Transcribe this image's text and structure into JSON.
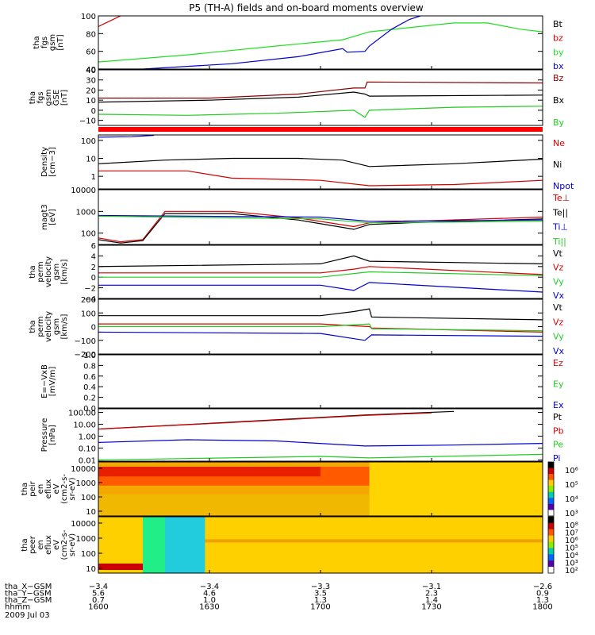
{
  "title": "P5 (TH-A) fields and on-board moments overview",
  "colors": {
    "black": "#000000",
    "red": "#d40000",
    "green": "#22dd22",
    "blue": "#0000cc",
    "brown": "#8a0000",
    "lightgreen": "#22cc22",
    "spec_bg": "#f6a800",
    "spec_hot": "#e83000"
  },
  "chart_data": [
    {
      "type": "line",
      "id": "fgs_gsm",
      "ylabel": [
        "tha",
        "fgs",
        "gsm",
        "[nT]"
      ],
      "ylim": [
        40,
        100
      ],
      "yticks": [
        "100",
        "80",
        "60",
        "40"
      ],
      "legend": [
        {
          "name": "Bt",
          "color": "#000000"
        },
        {
          "name": "bz",
          "color": "#d40000"
        },
        {
          "name": "by",
          "color": "#22dd22"
        },
        {
          "name": "bx",
          "color": "#0000cc"
        }
      ],
      "series": [
        {
          "name": "bz",
          "color": "#d40000",
          "points": [
            [
              1600,
              88
            ],
            [
              1605,
              94
            ],
            [
              1610,
              100
            ]
          ]
        },
        {
          "name": "by",
          "color": "#22dd22",
          "points": [
            [
              1600,
              48
            ],
            [
              1640,
              56
            ],
            [
              1680,
              66
            ],
            [
              1710,
              73
            ],
            [
              1722,
              82
            ],
            [
              1760,
              92
            ],
            [
              1775,
              92
            ],
            [
              1790,
              85
            ],
            [
              1800,
              82
            ]
          ]
        },
        {
          "name": "bx",
          "color": "#0000cc",
          "points": [
            [
              1600,
              40
            ],
            [
              1620,
              40
            ],
            [
              1660,
              46
            ],
            [
              1690,
              54
            ],
            [
              1710,
              63
            ],
            [
              1712,
              59
            ],
            [
              1720,
              60
            ],
            [
              1722,
              66
            ],
            [
              1732,
              85
            ],
            [
              1740,
              96
            ],
            [
              1745,
              100
            ]
          ]
        }
      ]
    },
    {
      "type": "line",
      "id": "fgs_gse",
      "ylabel": [
        "tha",
        "fgs",
        "gsm",
        "GSE",
        "[nT]"
      ],
      "ylim": [
        -15,
        40
      ],
      "yticks": [
        "40",
        "30",
        "20",
        "10",
        "0",
        "−10"
      ],
      "legend": [
        {
          "name": "Bz",
          "color": "#8a0000"
        },
        {
          "name": "Bx",
          "color": "#000000"
        },
        {
          "name": "By",
          "color": "#22cc22"
        }
      ],
      "series": [
        {
          "name": "Bz",
          "color": "#8a0000",
          "points": [
            [
              1600,
              12
            ],
            [
              1650,
              12
            ],
            [
              1690,
              16
            ],
            [
              1715,
              22
            ],
            [
              1720,
              22
            ],
            [
              1721,
              28
            ],
            [
              1800,
              27
            ]
          ]
        },
        {
          "name": "Bx",
          "color": "#000000",
          "points": [
            [
              1600,
              8
            ],
            [
              1650,
              10
            ],
            [
              1690,
              13
            ],
            [
              1715,
              18
            ],
            [
              1720,
              16
            ],
            [
              1722,
              14
            ],
            [
              1800,
              15
            ]
          ]
        },
        {
          "name": "By",
          "color": "#22cc22",
          "points": [
            [
              1600,
              -4
            ],
            [
              1640,
              -5
            ],
            [
              1680,
              -3
            ],
            [
              1715,
              0
            ],
            [
              1720,
              -7
            ],
            [
              1722,
              0
            ],
            [
              1760,
              3
            ],
            [
              1800,
              4
            ]
          ]
        }
      ]
    },
    {
      "type": "line",
      "id": "density",
      "log": true,
      "ylabel": [
        "Density",
        "[cm−3]"
      ],
      "ylim": [
        0.2,
        200
      ],
      "yticks": [
        "100",
        "10",
        "1"
      ],
      "legend": [
        {
          "name": "Ne",
          "color": "#d40000"
        },
        {
          "name": "Ni",
          "color": "#000000"
        },
        {
          "name": "Npot",
          "color": "#0000cc"
        }
      ],
      "series": [
        {
          "name": "Ni",
          "color": "#000000",
          "points": [
            [
              1600,
              5
            ],
            [
              1630,
              8
            ],
            [
              1660,
              10
            ],
            [
              1690,
              10
            ],
            [
              1710,
              8
            ],
            [
              1722,
              3.5
            ],
            [
              1760,
              5
            ],
            [
              1800,
              9
            ]
          ]
        },
        {
          "name": "Ne",
          "color": "#d40000",
          "points": [
            [
              1600,
              2
            ],
            [
              1640,
              2
            ],
            [
              1660,
              0.8
            ],
            [
              1700,
              0.6
            ],
            [
              1722,
              0.3
            ],
            [
              1760,
              0.35
            ],
            [
              1800,
              0.6
            ]
          ]
        },
        {
          "name": "Npot",
          "color": "#0000cc",
          "points": [
            [
              1600,
              150
            ],
            [
              1615,
              160
            ],
            [
              1625,
              190
            ]
          ]
        }
      ]
    },
    {
      "type": "line",
      "id": "temperature",
      "log": true,
      "ylabel": [
        "magt3",
        "[eV]"
      ],
      "ylim": [
        30,
        10000
      ],
      "yticks": [
        "10000",
        "1000",
        "100"
      ],
      "legend": [
        {
          "name": "Te⊥",
          "color": "#d40000"
        },
        {
          "name": "Te||",
          "color": "#000000"
        },
        {
          "name": "Ti⊥",
          "color": "#0000cc"
        },
        {
          "name": "Ti||",
          "color": "#22cc22"
        }
      ],
      "series": [
        {
          "name": "Te⊥",
          "color": "#d40000",
          "points": [
            [
              1600,
              60
            ],
            [
              1610,
              40
            ],
            [
              1620,
              50
            ],
            [
              1630,
              1000
            ],
            [
              1660,
              1000
            ],
            [
              1690,
              500
            ],
            [
              1715,
              200
            ],
            [
              1722,
              300
            ],
            [
              1740,
              350
            ],
            [
              1800,
              550
            ]
          ]
        },
        {
          "name": "Te||",
          "color": "#000000",
          "points": [
            [
              1600,
              50
            ],
            [
              1610,
              35
            ],
            [
              1620,
              45
            ],
            [
              1630,
              800
            ],
            [
              1660,
              800
            ],
            [
              1690,
              400
            ],
            [
              1715,
              150
            ],
            [
              1722,
              250
            ],
            [
              1740,
              300
            ],
            [
              1800,
              450
            ]
          ]
        },
        {
          "name": "Ti⊥",
          "color": "#0000cc",
          "points": [
            [
              1600,
              650
            ],
            [
              1700,
              550
            ],
            [
              1722,
              350
            ],
            [
              1800,
              400
            ]
          ]
        },
        {
          "name": "Ti||",
          "color": "#22cc22",
          "points": [
            [
              1600,
              600
            ],
            [
              1700,
              450
            ],
            [
              1722,
              300
            ],
            [
              1800,
              350
            ]
          ]
        }
      ]
    },
    {
      "type": "line",
      "id": "perm_velocity_small",
      "ylabel": [
        "tha",
        "perm",
        "velocity",
        "gsm",
        "[km/s]"
      ],
      "ylim": [
        -4,
        6
      ],
      "yticks": [
        "6",
        "4",
        "2",
        "0",
        "−2",
        "−4"
      ],
      "legend": [
        {
          "name": "Vt",
          "color": "#000000"
        },
        {
          "name": "Vz",
          "color": "#d40000"
        },
        {
          "name": "Vy",
          "color": "#22cc22"
        },
        {
          "name": "Vx",
          "color": "#0000cc"
        }
      ],
      "series": [
        {
          "name": "Vt",
          "color": "#000000",
          "points": [
            [
              1600,
              2
            ],
            [
              1700,
              2.5
            ],
            [
              1715,
              4
            ],
            [
              1722,
              3
            ],
            [
              1800,
              2.5
            ]
          ]
        },
        {
          "name": "Vz",
          "color": "#d40000",
          "points": [
            [
              1600,
              0.8
            ],
            [
              1700,
              0.8
            ],
            [
              1715,
              1.5
            ],
            [
              1722,
              2
            ],
            [
              1800,
              0.5
            ]
          ]
        },
        {
          "name": "Vy",
          "color": "#22cc22",
          "points": [
            [
              1600,
              0
            ],
            [
              1700,
              0
            ],
            [
              1722,
              1
            ],
            [
              1800,
              0.3
            ]
          ]
        },
        {
          "name": "Vx",
          "color": "#0000cc",
          "points": [
            [
              1600,
              -1.5
            ],
            [
              1700,
              -1.5
            ],
            [
              1715,
              -2.5
            ],
            [
              1722,
              -1
            ],
            [
              1800,
              -2.8
            ]
          ]
        }
      ]
    },
    {
      "type": "line",
      "id": "perm_velocity_large",
      "ylabel": [
        "tha",
        "perm",
        "velocity",
        "gsm",
        "[km/s]"
      ],
      "ylim": [
        -200,
        200
      ],
      "yticks": [
        "200",
        "100",
        "0",
        "−100",
        "−200"
      ],
      "legend": [
        {
          "name": "Vt",
          "color": "#000000"
        },
        {
          "name": "Vz",
          "color": "#d40000"
        },
        {
          "name": "Vy",
          "color": "#22cc22"
        },
        {
          "name": "Vx",
          "color": "#0000cc"
        }
      ],
      "series": [
        {
          "name": "Vt",
          "color": "#000000",
          "points": [
            [
              1600,
              80
            ],
            [
              1700,
              80
            ],
            [
              1715,
              110
            ],
            [
              1722,
              130
            ],
            [
              1723,
              70
            ],
            [
              1800,
              50
            ]
          ]
        },
        {
          "name": "Vz",
          "color": "#d40000",
          "points": [
            [
              1600,
              20
            ],
            [
              1700,
              20
            ],
            [
              1722,
              0
            ],
            [
              1723,
              -10
            ],
            [
              1800,
              -40
            ]
          ]
        },
        {
          "name": "Vy",
          "color": "#22cc22",
          "points": [
            [
              1600,
              0
            ],
            [
              1700,
              0
            ],
            [
              1722,
              20
            ],
            [
              1723,
              -15
            ],
            [
              1800,
              -30
            ]
          ]
        },
        {
          "name": "Vx",
          "color": "#0000cc",
          "points": [
            [
              1600,
              -40
            ],
            [
              1700,
              -50
            ],
            [
              1720,
              -100
            ],
            [
              1723,
              -60
            ],
            [
              1800,
              -70
            ]
          ]
        }
      ]
    },
    {
      "type": "line",
      "id": "efield",
      "ylabel": [
        "E=−VxB",
        "[mV/m]"
      ],
      "ylim": [
        0,
        1
      ],
      "yticks": [
        "1.0",
        "0.8",
        "0.6",
        "0.4",
        "0.2",
        "0.0"
      ],
      "legend": [
        {
          "name": "Ez",
          "color": "#d40000"
        },
        {
          "name": "Ey",
          "color": "#22cc22"
        },
        {
          "name": "Ex",
          "color": "#0000cc"
        }
      ],
      "series": []
    },
    {
      "type": "line",
      "id": "pressure",
      "log": true,
      "ylabel": [
        "Pressure",
        "[nPa]"
      ],
      "ylim": [
        0.008,
        200
      ],
      "yticks": [
        "100.00",
        "10.00",
        "1.00",
        "0.10",
        "0.01"
      ],
      "legend": [
        {
          "name": "Pt",
          "color": "#000000"
        },
        {
          "name": "Pb",
          "color": "#d40000"
        },
        {
          "name": "Pe",
          "color": "#22cc22"
        },
        {
          "name": "Pi",
          "color": "#0000cc"
        }
      ],
      "series": [
        {
          "name": "Pt",
          "color": "#000000",
          "points": [
            [
              1600,
              4
            ],
            [
              1660,
              15
            ],
            [
              1720,
              60
            ],
            [
              1760,
              120
            ]
          ]
        },
        {
          "name": "Pb",
          "color": "#d40000",
          "points": [
            [
              1600,
              4
            ],
            [
              1660,
              14
            ],
            [
              1720,
              55
            ],
            [
              1750,
              90
            ]
          ]
        },
        {
          "name": "Pi",
          "color": "#0000cc",
          "points": [
            [
              1600,
              0.3
            ],
            [
              1640,
              0.5
            ],
            [
              1680,
              0.4
            ],
            [
              1720,
              0.15
            ],
            [
              1760,
              0.18
            ],
            [
              1800,
              0.25
            ]
          ]
        },
        {
          "name": "Pe",
          "color": "#22cc22",
          "points": [
            [
              1600,
              0.01
            ],
            [
              1700,
              0.02
            ],
            [
              1722,
              0.015
            ],
            [
              1800,
              0.03
            ]
          ]
        }
      ]
    },
    {
      "type": "heatmap",
      "id": "peir_eflux",
      "ylabel": [
        "tha",
        "peir",
        "en",
        "eflux",
        "eV",
        "(cm2-s-",
        "sr-eV)"
      ],
      "yticks": [
        "10000",
        "1000",
        "100",
        "10"
      ],
      "colorbar_ticks": [
        "10⁶",
        "10⁵",
        "10⁴",
        "10³"
      ]
    },
    {
      "type": "heatmap",
      "id": "peer_eflux",
      "ylabel": [
        "tha",
        "peer",
        "en",
        "eflux",
        "eV",
        "(cm2-s-",
        "sr-eV)"
      ],
      "yticks": [
        "10000",
        "1000",
        "100",
        "10"
      ],
      "colorbar_ticks": [
        "10⁸",
        "10⁷",
        "10⁶",
        "10⁵",
        "10⁴",
        "10³",
        "10²"
      ]
    }
  ],
  "xaxis": {
    "rows": [
      {
        "label": "tha_X−GSM",
        "values": [
          "−3.4",
          "−3.4",
          "−3.3",
          "−3.1",
          "−2.6"
        ]
      },
      {
        "label": "tha_Y−GSM",
        "values": [
          "5.6",
          "4.6",
          "3.5",
          "2.3",
          "0.9"
        ]
      },
      {
        "label": "tha_Z−GSM",
        "values": [
          "0.7",
          "1.0",
          "1.3",
          "1.4",
          "1.3"
        ]
      },
      {
        "label": "hhmm",
        "values": [
          "1600",
          "1630",
          "1700",
          "1730",
          "1800"
        ]
      }
    ],
    "date": "2009 Jul 03"
  }
}
